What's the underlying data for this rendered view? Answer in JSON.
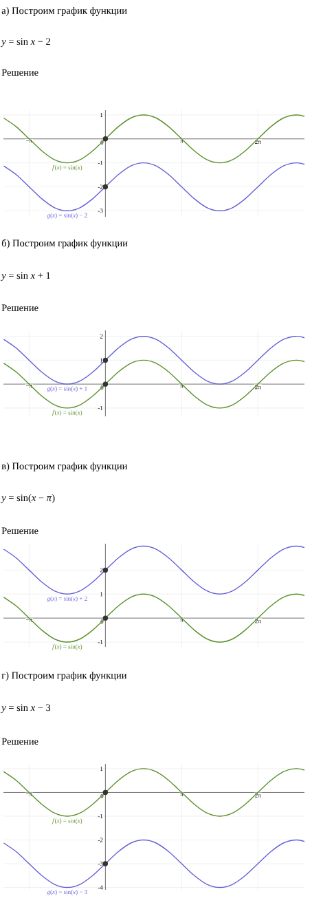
{
  "chart_data": [
    {
      "type": "line",
      "title": "а) Построим график функции",
      "subtitle": "*y* = sin *x* − 2",
      "annotations": [
        "Решение"
      ],
      "grid": true,
      "x": [
        -4.189,
        -3.665,
        -3.142,
        -2.618,
        -2.094,
        -1.571,
        -1.047,
        -0.524,
        0,
        0.524,
        1.047,
        1.571,
        2.094,
        2.618,
        3.142,
        3.665,
        4.189,
        4.712,
        5.236,
        5.76,
        6.283,
        6.807,
        7.33,
        7.854,
        8.2
      ],
      "xlim": [
        -4.2,
        8.2
      ],
      "ylim": [
        -3.25,
        1.2
      ],
      "xticks": [
        {
          "value": -3.142,
          "label": "−π"
        },
        {
          "value": 0,
          "label": "0"
        },
        {
          "value": 3.142,
          "label": "π"
        },
        {
          "value": 6.283,
          "label": "2π"
        }
      ],
      "yticks": [
        -3,
        -2,
        -1,
        1
      ],
      "series": [
        {
          "name": "*f*(*x*) = sin(*x*)",
          "color": "#5a8f29",
          "values": [
            0.87,
            0.5,
            0,
            -0.5,
            -0.87,
            -1,
            -0.87,
            -0.5,
            0,
            0.5,
            0.87,
            1,
            0.87,
            0.5,
            0,
            -0.5,
            -0.87,
            -1,
            -0.87,
            -0.5,
            0,
            0.5,
            0.87,
            1,
            0.94
          ]
        },
        {
          "name": "*g*(*x*) = sin(*x*) − 2",
          "color": "#6460d8",
          "values": [
            -1.13,
            -1.5,
            -2,
            -2.5,
            -2.87,
            -3,
            -2.87,
            -2.5,
            -2,
            -1.5,
            -1.13,
            -1,
            -1.13,
            -1.5,
            -2,
            -2.5,
            -2.87,
            -3,
            -2.87,
            -2.5,
            -2,
            -1.5,
            -1.13,
            -1,
            -1.06
          ]
        },
        {
          "type": "scatter",
          "color": "#333333",
          "values": [
            null,
            null,
            null,
            null,
            null,
            null,
            null,
            null,
            0,
            null,
            null,
            null,
            null,
            null,
            null,
            null,
            null,
            null,
            null,
            null,
            null,
            null,
            null,
            null,
            null
          ]
        },
        {
          "type": "scatter",
          "color": "#333333",
          "values": [
            null,
            null,
            null,
            null,
            null,
            null,
            null,
            null,
            -2,
            null,
            null,
            null,
            null,
            null,
            null,
            null,
            null,
            null,
            null,
            null,
            null,
            null,
            null,
            null,
            null
          ]
        }
      ]
    },
    {
      "type": "line",
      "title": "б) Построим график функции",
      "subtitle": "*y* = sin *x* + 1",
      "annotations": [
        "Решение"
      ],
      "grid": true,
      "x": [
        -4.189,
        -3.665,
        -3.142,
        -2.618,
        -2.094,
        -1.571,
        -1.047,
        -0.524,
        0,
        0.524,
        1.047,
        1.571,
        2.094,
        2.618,
        3.142,
        3.665,
        4.189,
        4.712,
        5.236,
        5.76,
        6.283,
        6.807,
        7.33,
        7.854,
        8.2
      ],
      "xlim": [
        -4.2,
        8.2
      ],
      "ylim": [
        -1.35,
        2.25
      ],
      "xticks": [
        {
          "value": -3.142,
          "label": "−π"
        },
        {
          "value": 0,
          "label": "0"
        },
        {
          "value": 3.142,
          "label": "π"
        },
        {
          "value": 6.283,
          "label": "2π"
        }
      ],
      "yticks": [
        -1,
        1,
        2
      ],
      "series": [
        {
          "name": "*g*(*x*) = sin(*x*) + 1",
          "color": "#6460d8",
          "values": [
            1.87,
            1.5,
            1,
            0.5,
            0.13,
            0,
            0.13,
            0.5,
            1,
            1.5,
            1.87,
            2,
            1.87,
            1.5,
            1,
            0.5,
            0.13,
            0,
            0.13,
            0.5,
            1,
            1.5,
            1.87,
            2,
            1.94
          ]
        },
        {
          "name": "*f*(*x*) = sin(*x*)",
          "color": "#5a8f29",
          "values": [
            0.87,
            0.5,
            0,
            -0.5,
            -0.87,
            -1,
            -0.87,
            -0.5,
            0,
            0.5,
            0.87,
            1,
            0.87,
            0.5,
            0,
            -0.5,
            -0.87,
            -1,
            -0.87,
            -0.5,
            0,
            0.5,
            0.87,
            1,
            0.94
          ]
        },
        {
          "type": "scatter",
          "color": "#333333",
          "values": [
            null,
            null,
            null,
            null,
            null,
            null,
            null,
            null,
            1,
            null,
            null,
            null,
            null,
            null,
            null,
            null,
            null,
            null,
            null,
            null,
            null,
            null,
            null,
            null,
            null
          ]
        },
        {
          "type": "scatter",
          "color": "#333333",
          "values": [
            null,
            null,
            null,
            null,
            null,
            null,
            null,
            null,
            0,
            null,
            null,
            null,
            null,
            null,
            null,
            null,
            null,
            null,
            null,
            null,
            null,
            null,
            null,
            null,
            null
          ]
        }
      ]
    },
    {
      "type": "line",
      "title": "в) Построим график функции",
      "subtitle": "*y* = sin(*x* − *π*)",
      "annotations": [
        "Решение"
      ],
      "grid": true,
      "x": [
        -4.189,
        -3.665,
        -3.142,
        -2.618,
        -2.094,
        -1.571,
        -1.047,
        -0.524,
        0,
        0.524,
        1.047,
        1.571,
        2.094,
        2.618,
        3.142,
        3.665,
        4.189,
        4.712,
        5.236,
        5.76,
        6.283,
        6.807,
        7.33,
        7.854,
        8.2
      ],
      "xlim": [
        -4.2,
        8.2
      ],
      "ylim": [
        -1.2,
        3.1
      ],
      "xticks": [
        {
          "value": -3.142,
          "label": "−π"
        },
        {
          "value": 0,
          "label": "0"
        },
        {
          "value": 3.142,
          "label": "π"
        },
        {
          "value": 6.283,
          "label": "2π"
        }
      ],
      "yticks": [
        -1,
        1,
        2
      ],
      "series": [
        {
          "name": "*g*(*x*) = sin(*x*) + 2",
          "color": "#6460d8",
          "values": [
            2.87,
            2.5,
            2,
            1.5,
            1.13,
            1,
            1.13,
            1.5,
            2,
            2.5,
            2.87,
            3,
            2.87,
            2.5,
            2,
            1.5,
            1.13,
            1,
            1.13,
            1.5,
            2,
            2.5,
            2.87,
            3,
            2.94
          ]
        },
        {
          "name": "*f*(*x*) = sin(*x*)",
          "color": "#5a8f29",
          "values": [
            0.87,
            0.5,
            0,
            -0.5,
            -0.87,
            -1,
            -0.87,
            -0.5,
            0,
            0.5,
            0.87,
            1,
            0.87,
            0.5,
            0,
            -0.5,
            -0.87,
            -1,
            -0.87,
            -0.5,
            0,
            0.5,
            0.87,
            1,
            0.94
          ]
        },
        {
          "type": "scatter",
          "color": "#333333",
          "values": [
            null,
            null,
            null,
            null,
            null,
            null,
            null,
            null,
            2,
            null,
            null,
            null,
            null,
            null,
            null,
            null,
            null,
            null,
            null,
            null,
            null,
            null,
            null,
            null,
            null
          ]
        },
        {
          "type": "scatter",
          "color": "#333333",
          "values": [
            null,
            null,
            null,
            null,
            null,
            null,
            null,
            null,
            0,
            null,
            null,
            null,
            null,
            null,
            null,
            null,
            null,
            null,
            null,
            null,
            null,
            null,
            null,
            null,
            null
          ]
        }
      ]
    },
    {
      "type": "line",
      "title": "г) Построим график функции",
      "subtitle": "*y* = sin *x* − 3",
      "annotations": [
        "Решение"
      ],
      "grid": true,
      "x": [
        -4.189,
        -3.665,
        -3.142,
        -2.618,
        -2.094,
        -1.571,
        -1.047,
        -0.524,
        0,
        0.524,
        1.047,
        1.571,
        2.094,
        2.618,
        3.142,
        3.665,
        4.189,
        4.712,
        5.236,
        5.76,
        6.283,
        6.807,
        7.33,
        7.854,
        8.2
      ],
      "xlim": [
        -4.2,
        8.2
      ],
      "ylim": [
        -4.1,
        1.2
      ],
      "xticks": [
        {
          "value": -3.142,
          "label": "−π"
        },
        {
          "value": 0,
          "label": "0"
        },
        {
          "value": 3.142,
          "label": "π"
        },
        {
          "value": 6.283,
          "label": "2π"
        }
      ],
      "yticks": [
        -4,
        -3,
        -2,
        -1,
        1
      ],
      "series": [
        {
          "name": "*f*(*x*) = sin(*x*)",
          "color": "#5a8f29",
          "values": [
            0.87,
            0.5,
            0,
            -0.5,
            -0.87,
            -1,
            -0.87,
            -0.5,
            0,
            0.5,
            0.87,
            1,
            0.87,
            0.5,
            0,
            -0.5,
            -0.87,
            -1,
            -0.87,
            -0.5,
            0,
            0.5,
            0.87,
            1,
            0.94
          ]
        },
        {
          "name": "*g*(*x*) = sin(*x*) − 3",
          "color": "#6460d8",
          "values": [
            -2.13,
            -2.5,
            -3,
            -3.5,
            -3.87,
            -4,
            -3.87,
            -3.5,
            -3,
            -2.5,
            -2.13,
            -2,
            -2.13,
            -2.5,
            -3,
            -3.5,
            -3.87,
            -4,
            -3.87,
            -3.5,
            -3,
            -2.5,
            -2.13,
            -2,
            -2.06
          ]
        },
        {
          "type": "scatter",
          "color": "#333333",
          "values": [
            null,
            null,
            null,
            null,
            null,
            null,
            null,
            null,
            0,
            null,
            null,
            null,
            null,
            null,
            null,
            null,
            null,
            null,
            null,
            null,
            null,
            null,
            null,
            null,
            null
          ]
        },
        {
          "type": "scatter",
          "color": "#333333",
          "values": [
            null,
            null,
            null,
            null,
            null,
            null,
            null,
            null,
            -3,
            null,
            null,
            null,
            null,
            null,
            null,
            null,
            null,
            null,
            null,
            null,
            null,
            null,
            null,
            null,
            null
          ]
        }
      ]
    }
  ]
}
